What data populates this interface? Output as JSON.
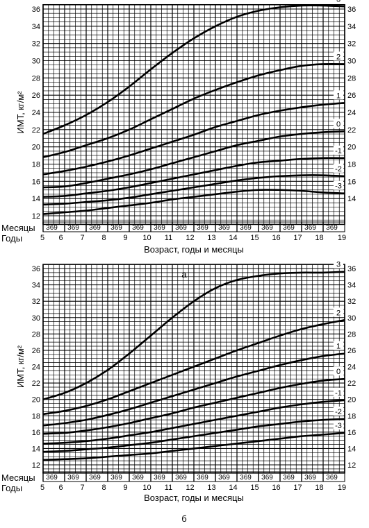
{
  "chart_data": [
    {
      "type": "line",
      "caption": "а",
      "xlabel": "Возраст, годы и месяцы",
      "ylabel": "ИМТ, кг/м²",
      "row_labels": {
        "months": "Месяцы",
        "years": "Годы"
      },
      "xlim": [
        5,
        19
      ],
      "ylim": [
        11,
        36.5
      ],
      "x_ticks": [
        "5",
        "6",
        "7",
        "8",
        "9",
        "10",
        "11",
        "12",
        "13",
        "14",
        "15",
        "16",
        "17",
        "18",
        "19"
      ],
      "month_ticks": "369",
      "y_ticks_left": [
        "12",
        "14",
        "16",
        "18",
        "20",
        "22",
        "24",
        "26",
        "28",
        "30",
        "32",
        "34",
        "36"
      ],
      "y_ticks_right": [
        "14",
        "16",
        "18",
        "20",
        "22",
        "24",
        "26",
        "28",
        "30",
        "32",
        "34",
        "36"
      ],
      "grid": true,
      "series": [
        {
          "name": "3",
          "x": [
            5,
            6,
            7,
            8,
            9,
            10,
            11,
            12,
            13,
            14,
            15,
            16,
            17,
            18,
            19
          ],
          "y": [
            21.5,
            22.5,
            23.7,
            25.2,
            27.0,
            29.0,
            30.9,
            32.6,
            34.0,
            35.1,
            35.8,
            36.2,
            36.4,
            36.4,
            36.3
          ]
        },
        {
          "name": "2",
          "x": [
            5,
            6,
            7,
            8,
            9,
            10,
            11,
            12,
            13,
            14,
            15,
            16,
            17,
            18,
            19
          ],
          "y": [
            18.8,
            19.4,
            20.2,
            21.0,
            22.0,
            23.2,
            24.4,
            25.6,
            26.6,
            27.5,
            28.3,
            28.9,
            29.4,
            29.6,
            29.6
          ]
        },
        {
          "name": "1",
          "x": [
            5,
            6,
            7,
            8,
            9,
            10,
            11,
            12,
            13,
            14,
            15,
            16,
            17,
            18,
            19
          ],
          "y": [
            16.8,
            17.2,
            17.7,
            18.3,
            19.0,
            19.8,
            20.6,
            21.4,
            22.3,
            23.0,
            23.7,
            24.2,
            24.6,
            24.9,
            25.1
          ]
        },
        {
          "name": "0",
          "x": [
            5,
            6,
            7,
            8,
            9,
            10,
            11,
            12,
            13,
            14,
            15,
            16,
            17,
            18,
            19
          ],
          "y": [
            15.3,
            15.4,
            15.8,
            16.3,
            16.8,
            17.4,
            18.1,
            18.8,
            19.5,
            20.2,
            20.7,
            21.2,
            21.5,
            21.7,
            21.8
          ]
        },
        {
          "name": "-1",
          "x": [
            5,
            6,
            7,
            8,
            9,
            10,
            11,
            12,
            13,
            14,
            15,
            16,
            17,
            18,
            19
          ],
          "y": [
            14.2,
            14.3,
            14.6,
            14.9,
            15.3,
            15.8,
            16.3,
            16.8,
            17.3,
            17.8,
            18.2,
            18.4,
            18.6,
            18.7,
            18.7
          ]
        },
        {
          "name": "-2",
          "x": [
            5,
            6,
            7,
            8,
            9,
            10,
            11,
            12,
            13,
            14,
            15,
            16,
            17,
            18,
            19
          ],
          "y": [
            13.3,
            13.4,
            13.6,
            13.8,
            14.1,
            14.5,
            14.9,
            15.3,
            15.7,
            16.1,
            16.4,
            16.6,
            16.7,
            16.7,
            16.6
          ]
        },
        {
          "name": "-3",
          "x": [
            5,
            6,
            7,
            8,
            9,
            10,
            11,
            12,
            13,
            14,
            15,
            16,
            17,
            18,
            19
          ],
          "y": [
            12.2,
            12.4,
            12.6,
            12.9,
            13.2,
            13.5,
            13.9,
            14.2,
            14.5,
            14.8,
            15.0,
            15.0,
            14.9,
            14.7,
            14.6
          ]
        }
      ]
    },
    {
      "type": "line",
      "caption": "б",
      "xlabel": "Возраст, годы и месяцы",
      "ylabel": "ИМТ, кг/м²",
      "row_labels": {
        "months": "Месяцы",
        "years": "Годы"
      },
      "xlim": [
        5,
        19
      ],
      "ylim": [
        11,
        36.5
      ],
      "x_ticks": [
        "5",
        "6",
        "7",
        "8",
        "9",
        "10",
        "11",
        "12",
        "13",
        "14",
        "15",
        "16",
        "17",
        "18",
        "19"
      ],
      "month_ticks": "369",
      "y_ticks_left": [
        "12",
        "14",
        "16",
        "18",
        "20",
        "22",
        "24",
        "26",
        "28",
        "30",
        "32",
        "34",
        "36"
      ],
      "y_ticks_right": [
        "12",
        "14",
        "16",
        "18",
        "20",
        "22",
        "24",
        "26",
        "28",
        "30",
        "32",
        "34",
        "36"
      ],
      "grid": true,
      "series": [
        {
          "name": "3",
          "x": [
            5,
            6,
            7,
            8,
            9,
            10,
            11,
            12,
            13,
            14,
            15,
            16,
            17,
            18,
            19
          ],
          "y": [
            20.0,
            20.8,
            22.0,
            23.6,
            25.6,
            27.8,
            30.0,
            32.0,
            33.6,
            34.6,
            35.1,
            35.4,
            35.5,
            35.5,
            35.6
          ]
        },
        {
          "name": "2",
          "x": [
            5,
            6,
            7,
            8,
            9,
            10,
            11,
            12,
            13,
            14,
            15,
            16,
            17,
            18,
            19
          ],
          "y": [
            18.2,
            18.6,
            19.2,
            20.0,
            21.0,
            22.0,
            23.0,
            24.0,
            25.0,
            26.0,
            26.9,
            27.8,
            28.6,
            29.2,
            29.7
          ]
        },
        {
          "name": "1",
          "x": [
            5,
            6,
            7,
            8,
            9,
            10,
            11,
            12,
            13,
            14,
            15,
            16,
            17,
            18,
            19
          ],
          "y": [
            16.8,
            17.1,
            17.5,
            18.1,
            18.8,
            19.6,
            20.4,
            21.2,
            22.0,
            22.8,
            23.5,
            24.2,
            24.8,
            25.3,
            25.6
          ]
        },
        {
          "name": "0",
          "x": [
            5,
            6,
            7,
            8,
            9,
            10,
            11,
            12,
            13,
            14,
            15,
            16,
            17,
            18,
            19
          ],
          "y": [
            15.8,
            15.9,
            16.2,
            16.6,
            17.1,
            17.7,
            18.3,
            19.0,
            19.6,
            20.2,
            20.8,
            21.4,
            21.9,
            22.3,
            22.5
          ]
        },
        {
          "name": "-1",
          "x": [
            5,
            6,
            7,
            8,
            9,
            10,
            11,
            12,
            13,
            14,
            15,
            16,
            17,
            18,
            19
          ],
          "y": [
            14.6,
            14.7,
            14.9,
            15.2,
            15.6,
            16.0,
            16.5,
            17.0,
            17.5,
            18.0,
            18.5,
            19.0,
            19.4,
            19.7,
            19.9
          ]
        },
        {
          "name": "-2",
          "x": [
            5,
            6,
            7,
            8,
            9,
            10,
            11,
            12,
            13,
            14,
            15,
            16,
            17,
            18,
            19
          ],
          "y": [
            13.6,
            13.7,
            13.9,
            14.1,
            14.4,
            14.7,
            15.1,
            15.5,
            15.9,
            16.3,
            16.7,
            17.0,
            17.3,
            17.5,
            17.6
          ]
        },
        {
          "name": "-3",
          "x": [
            5,
            6,
            7,
            8,
            9,
            10,
            11,
            12,
            13,
            14,
            15,
            16,
            17,
            18,
            19
          ],
          "y": [
            12.6,
            12.7,
            12.8,
            13.0,
            13.2,
            13.4,
            13.7,
            14.0,
            14.3,
            14.6,
            14.9,
            15.2,
            15.5,
            15.7,
            15.9
          ]
        }
      ]
    }
  ]
}
